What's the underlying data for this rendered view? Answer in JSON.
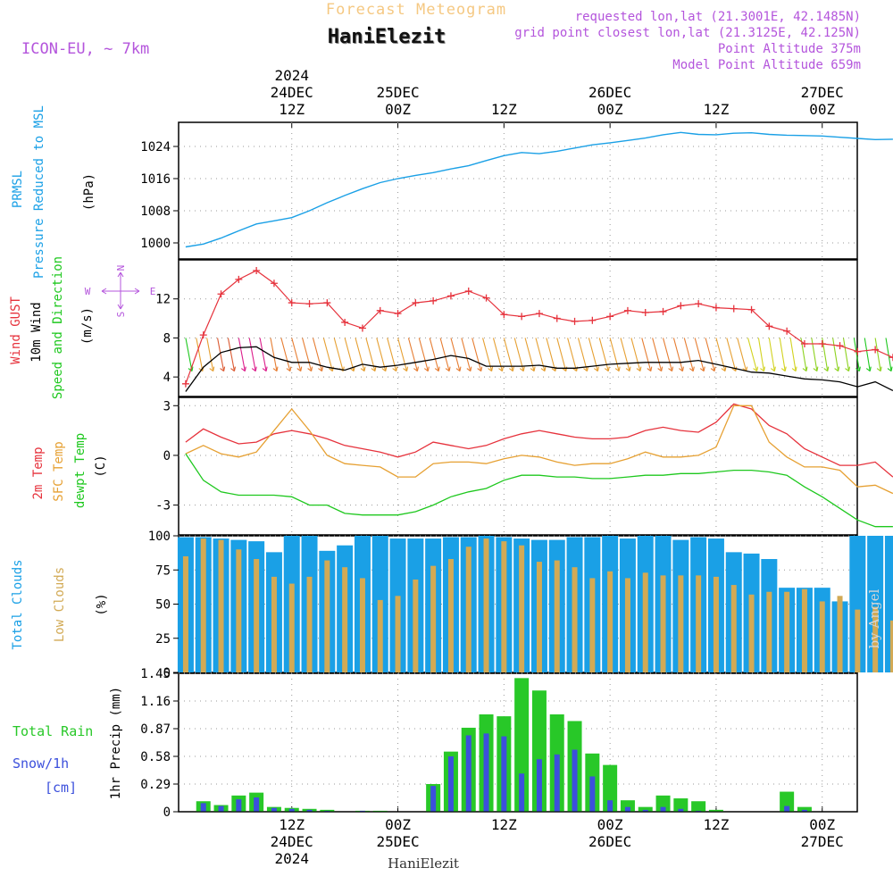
{
  "header": {
    "product": "Forecast Meteogram",
    "model": "ICON-EU, ~ 7km",
    "station": "HaniElezit",
    "requested": "requested lon,lat (21.3001E, 42.1485N)",
    "grid_point": "grid point closest lon,lat (21.3125E, 42.125N)",
    "point_altitude": "Point Altitude 375m",
    "model_altitude": "Model Point Altitude 659m",
    "footer_station": "HaniElezit",
    "credit": "by Angel"
  },
  "colors": {
    "pressure": "#1aa0e6",
    "gust": "#e6323c",
    "wind": "#000000",
    "temp2m": "#e6323c",
    "sfc": "#e6a032",
    "dewpt": "#1ec81e",
    "total_clouds": "#1aa0e6",
    "low_clouds": "#d2aa55",
    "rain": "#28c828",
    "snow": "#3c50dc",
    "title_orange": "#f5c882",
    "info_purple": "#b455dc"
  },
  "chart_data": [
    {
      "type": "line",
      "panel": "pressure",
      "ylabel": [
        "PRMSL",
        "Pressure Reduced to MSL",
        "(hPa)"
      ],
      "yticks": [
        1000,
        1008,
        1016,
        1024
      ],
      "ylim": [
        996,
        1030
      ],
      "x_hours_from_24DEC_00Z": [
        0,
        2,
        4,
        6,
        8,
        10,
        12,
        14,
        16,
        18,
        20,
        22,
        24,
        26,
        28,
        30,
        32,
        34,
        36,
        38,
        40,
        42,
        44,
        46,
        48,
        50,
        52,
        54,
        56,
        58,
        60,
        62,
        64,
        66,
        68,
        70,
        72,
        74,
        76,
        78,
        80
      ],
      "series": [
        {
          "values": [
            999.0,
            999.7,
            1001.2,
            1003.0,
            1004.7,
            1005.5,
            1006.3,
            1008.0,
            1010.0,
            1011.8,
            1013.5,
            1015.0,
            1016.0,
            1016.8,
            1017.5,
            1018.4,
            1019.2,
            1020.5,
            1021.7,
            1022.5,
            1022.2,
            1022.8,
            1023.6,
            1024.4,
            1024.9,
            1025.5,
            1026.1,
            1026.9,
            1027.5,
            1027.0,
            1026.9,
            1027.3,
            1027.4,
            1027.0,
            1026.8,
            1026.7,
            1026.6,
            1026.3,
            1026.0,
            1025.7,
            1025.8
          ]
        }
      ]
    },
    {
      "type": "line",
      "panel": "wind",
      "ylabel": [
        "Wind GUST",
        "10m Wind",
        "Speed and Direction",
        "(m/s)"
      ],
      "yticks": [
        4,
        8,
        12
      ],
      "ylim": [
        2,
        16
      ],
      "compass": [
        "N",
        "S",
        "W",
        "E"
      ],
      "x_hours_from_24DEC_00Z": [
        0,
        2,
        4,
        6,
        8,
        10,
        12,
        14,
        16,
        18,
        20,
        22,
        24,
        26,
        28,
        30,
        32,
        34,
        36,
        38,
        40,
        42,
        44,
        46,
        48,
        50,
        52,
        54,
        56,
        58,
        60,
        62,
        64,
        66,
        68,
        70,
        72,
        74,
        76,
        78,
        80
      ],
      "series": [
        {
          "name": "Wind GUST",
          "values": [
            3.3,
            8.3,
            12.5,
            14.0,
            14.9,
            13.6,
            11.6,
            11.5,
            11.6,
            9.6,
            9.0,
            10.8,
            10.5,
            11.6,
            11.8,
            12.3,
            12.8,
            12.1,
            10.4,
            10.2,
            10.5,
            10.0,
            9.7,
            9.8,
            10.2,
            10.8,
            10.6,
            10.7,
            11.3,
            11.5,
            11.1,
            11.0,
            10.9,
            9.2,
            8.7,
            7.4,
            7.4,
            7.2,
            6.6,
            6.8,
            6.0
          ]
        },
        {
          "name": "10m Wind",
          "values": [
            2.5,
            5.0,
            6.5,
            7.0,
            7.1,
            6.0,
            5.5,
            5.5,
            5.0,
            4.7,
            5.3,
            5.0,
            5.2,
            5.5,
            5.8,
            6.2,
            5.9,
            5.1,
            5.1,
            5.1,
            5.2,
            4.9,
            4.9,
            5.1,
            5.3,
            5.4,
            5.5,
            5.5,
            5.5,
            5.7,
            5.3,
            4.9,
            4.5,
            4.4,
            4.1,
            3.8,
            3.7,
            3.5,
            3.0,
            3.5,
            2.6
          ]
        }
      ]
    },
    {
      "type": "line",
      "panel": "temperature",
      "ylabel": [
        "2m Temp",
        "SFC Temp",
        "dewpt Temp",
        "(C)"
      ],
      "yticks": [
        -3,
        0,
        3
      ],
      "ylim": [
        -4.8,
        3.5
      ],
      "x_hours_from_24DEC_00Z": [
        0,
        2,
        4,
        6,
        8,
        10,
        12,
        14,
        16,
        18,
        20,
        22,
        24,
        26,
        28,
        30,
        32,
        34,
        36,
        38,
        40,
        42,
        44,
        46,
        48,
        50,
        52,
        54,
        56,
        58,
        60,
        62,
        64,
        66,
        68,
        70,
        72,
        74,
        76,
        78,
        80
      ],
      "series": [
        {
          "name": "2m Temp",
          "values": [
            0.8,
            1.6,
            1.1,
            0.7,
            0.8,
            1.3,
            1.5,
            1.3,
            1.0,
            0.6,
            0.4,
            0.2,
            -0.1,
            0.2,
            0.8,
            0.6,
            0.4,
            0.6,
            1.0,
            1.3,
            1.5,
            1.3,
            1.1,
            1.0,
            1.0,
            1.1,
            1.5,
            1.7,
            1.5,
            1.4,
            2.0,
            3.1,
            2.8,
            1.8,
            1.3,
            0.4,
            -0.1,
            -0.6,
            -0.6,
            -0.4,
            -1.3
          ]
        },
        {
          "name": "SFC Temp",
          "values": [
            0.1,
            0.6,
            0.1,
            -0.1,
            0.2,
            1.5,
            2.8,
            1.5,
            0.0,
            -0.5,
            -0.6,
            -0.7,
            -1.3,
            -1.3,
            -0.5,
            -0.4,
            -0.4,
            -0.5,
            -0.2,
            0.0,
            -0.1,
            -0.4,
            -0.6,
            -0.5,
            -0.5,
            -0.2,
            0.2,
            -0.1,
            -0.1,
            0.0,
            0.5,
            3.0,
            3.0,
            0.8,
            -0.1,
            -0.7,
            -0.7,
            -0.9,
            -1.9,
            -1.8,
            -2.3
          ]
        },
        {
          "name": "dewpt Temp",
          "values": [
            0.1,
            -1.5,
            -2.2,
            -2.4,
            -2.4,
            -2.4,
            -2.5,
            -3.0,
            -3.0,
            -3.5,
            -3.6,
            -3.6,
            -3.6,
            -3.4,
            -3.0,
            -2.5,
            -2.2,
            -2.0,
            -1.5,
            -1.2,
            -1.2,
            -1.3,
            -1.3,
            -1.4,
            -1.4,
            -1.3,
            -1.2,
            -1.2,
            -1.1,
            -1.1,
            -1.0,
            -0.9,
            -0.9,
            -1.0,
            -1.2,
            -1.9,
            -2.5,
            -3.2,
            -3.9,
            -4.3,
            -4.3
          ]
        }
      ]
    },
    {
      "type": "bar",
      "panel": "clouds",
      "ylabel": [
        "Total Clouds",
        "Low Clouds",
        "(%)"
      ],
      "yticks": [
        0,
        25,
        50,
        75,
        100
      ],
      "ylim": [
        0,
        100
      ],
      "x_hours_from_24DEC_00Z": [
        0,
        2,
        4,
        6,
        8,
        10,
        12,
        14,
        16,
        18,
        20,
        22,
        24,
        26,
        28,
        30,
        32,
        34,
        36,
        38,
        40,
        42,
        44,
        46,
        48,
        50,
        52,
        54,
        56,
        58,
        60,
        62,
        64,
        66,
        68,
        70,
        72,
        74,
        76,
        78,
        80
      ],
      "series": [
        {
          "name": "Total Clouds",
          "values": [
            99,
            99,
            98,
            97,
            96,
            88,
            100,
            100,
            89,
            93,
            100,
            100,
            98,
            98,
            98,
            99,
            99,
            100,
            99,
            98,
            97,
            97,
            99,
            99,
            100,
            98,
            100,
            100,
            97,
            99,
            98,
            88,
            87,
            83,
            62,
            62,
            62,
            52,
            100,
            100,
            100
          ]
        },
        {
          "name": "Low Clouds",
          "values": [
            85,
            98,
            97,
            90,
            83,
            70,
            65,
            70,
            82,
            77,
            69,
            53,
            56,
            68,
            78,
            83,
            92,
            98,
            96,
            93,
            81,
            82,
            77,
            69,
            74,
            69,
            73,
            71,
            71,
            71,
            70,
            64,
            57,
            59,
            59,
            61,
            52,
            56,
            46,
            48,
            38
          ]
        }
      ]
    },
    {
      "type": "bar",
      "panel": "precipitation",
      "ylabel": [
        "Total Rain",
        "Snow/1h",
        "[cm]",
        "1hr Precip (mm)"
      ],
      "yticks": [
        0,
        0.29,
        0.58,
        0.87,
        1.16,
        1.45
      ],
      "ylim": [
        0,
        1.45
      ],
      "x_hours_from_24DEC_00Z": [
        2,
        4,
        6,
        8,
        10,
        12,
        14,
        16,
        18,
        20,
        22,
        24,
        26,
        28,
        30,
        32,
        34,
        36,
        38,
        40,
        42,
        44,
        46,
        48,
        50,
        52,
        54,
        56,
        58,
        60,
        62,
        64,
        66,
        68,
        70,
        72,
        74,
        76,
        78,
        80
      ],
      "series": [
        {
          "name": "Total Rain",
          "values": [
            0.11,
            0.07,
            0.17,
            0.2,
            0.05,
            0.04,
            0.03,
            0.02,
            0.0,
            0.01,
            0.01,
            0.0,
            0.0,
            0.29,
            0.63,
            0.88,
            1.02,
            1.0,
            1.4,
            1.27,
            1.02,
            0.95,
            0.61,
            0.49,
            0.12,
            0.05,
            0.17,
            0.14,
            0.11,
            0.02,
            0.0,
            0.0,
            0.0,
            0.21,
            0.05,
            0.0,
            0.0,
            0.0,
            0.0,
            0.0
          ]
        },
        {
          "name": "Snow/1h",
          "values": [
            0.09,
            0.06,
            0.13,
            0.15,
            0.04,
            0.03,
            0.02,
            0.01,
            0.0,
            0.01,
            0.0,
            0.0,
            0.0,
            0.27,
            0.58,
            0.8,
            0.82,
            0.79,
            0.4,
            0.55,
            0.6,
            0.65,
            0.37,
            0.12,
            0.05,
            0.02,
            0.05,
            0.03,
            0.01,
            0.0,
            0.0,
            0.0,
            0.0,
            0.06,
            0.02,
            0.0,
            0.0,
            0.0,
            0.0,
            0.0
          ]
        }
      ]
    }
  ],
  "time_axis": {
    "top": [
      {
        "h": 12,
        "lines": [
          "2024",
          "24DEC",
          "12Z"
        ]
      },
      {
        "h": 24,
        "lines": [
          "25DEC",
          "00Z"
        ]
      },
      {
        "h": 36,
        "lines": [
          "12Z"
        ]
      },
      {
        "h": 48,
        "lines": [
          "26DEC",
          "00Z"
        ]
      },
      {
        "h": 60,
        "lines": [
          "12Z"
        ]
      },
      {
        "h": 72,
        "lines": [
          "27DEC",
          "00Z"
        ]
      }
    ],
    "bottom": [
      {
        "h": 12,
        "lines": [
          "12Z",
          "24DEC",
          "2024"
        ]
      },
      {
        "h": 24,
        "lines": [
          "00Z",
          "25DEC"
        ]
      },
      {
        "h": 36,
        "lines": [
          "12Z"
        ]
      },
      {
        "h": 48,
        "lines": [
          "00Z",
          "26DEC"
        ]
      },
      {
        "h": 60,
        "lines": [
          "12Z"
        ]
      },
      {
        "h": 72,
        "lines": [
          "00Z",
          "27DEC"
        ]
      }
    ]
  }
}
